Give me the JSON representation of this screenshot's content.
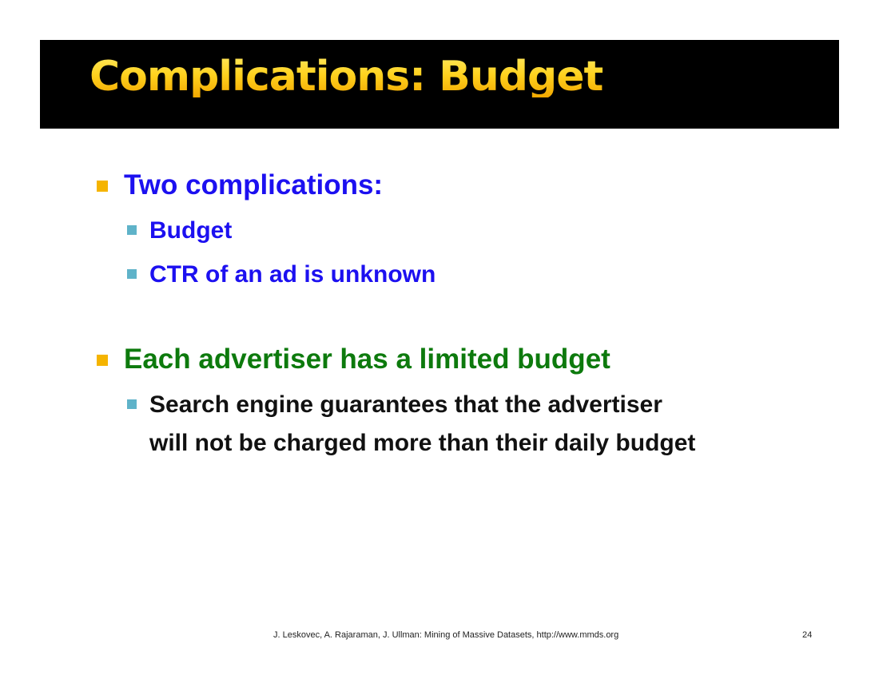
{
  "slide": {
    "title": "Complications: Budget",
    "bullets": [
      {
        "text": "Two complications:",
        "sub": [
          "Budget",
          "CTR of an ad is unknown"
        ]
      },
      {
        "text": "Each advertiser has a limited budget",
        "sub": [
          "Search engine guarantees that the advertiser",
          "will not be charged more than their daily budget"
        ]
      }
    ],
    "footer": "J. Leskovec, A. Rajaraman, J. Ullman: Mining of Massive Datasets, http://www.mmds.org",
    "page_number": "24"
  },
  "colors": {
    "title_bar": "#000000",
    "title_text": "#ffd21f",
    "heading_blue": "#1c10f0",
    "heading_green": "#0d7a0d",
    "body_text": "#111111",
    "bullet_level1": "#f5b400",
    "bullet_level2": "#5fb3c9"
  }
}
